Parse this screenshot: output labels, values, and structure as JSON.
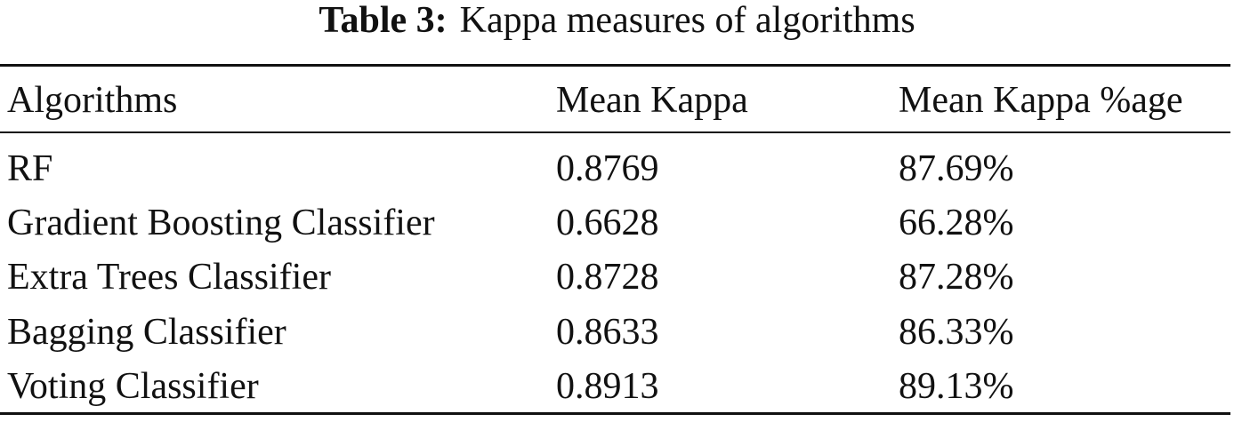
{
  "caption": {
    "label": "Table 3:",
    "text": "Kappa measures of algorithms"
  },
  "table": {
    "header": [
      "Algorithms",
      "Mean Kappa",
      "Mean Kappa %age"
    ],
    "rows": [
      [
        "RF",
        "0.8769",
        "87.69%"
      ],
      [
        "Gradient Boosting Classifier",
        "0.6628",
        "66.28%"
      ],
      [
        "Extra Trees Classifier",
        "0.8728",
        "87.28%"
      ],
      [
        "Bagging Classifier",
        "0.8633",
        "86.33%"
      ],
      [
        "Voting Classifier",
        "0.8913",
        "89.13%"
      ]
    ]
  }
}
